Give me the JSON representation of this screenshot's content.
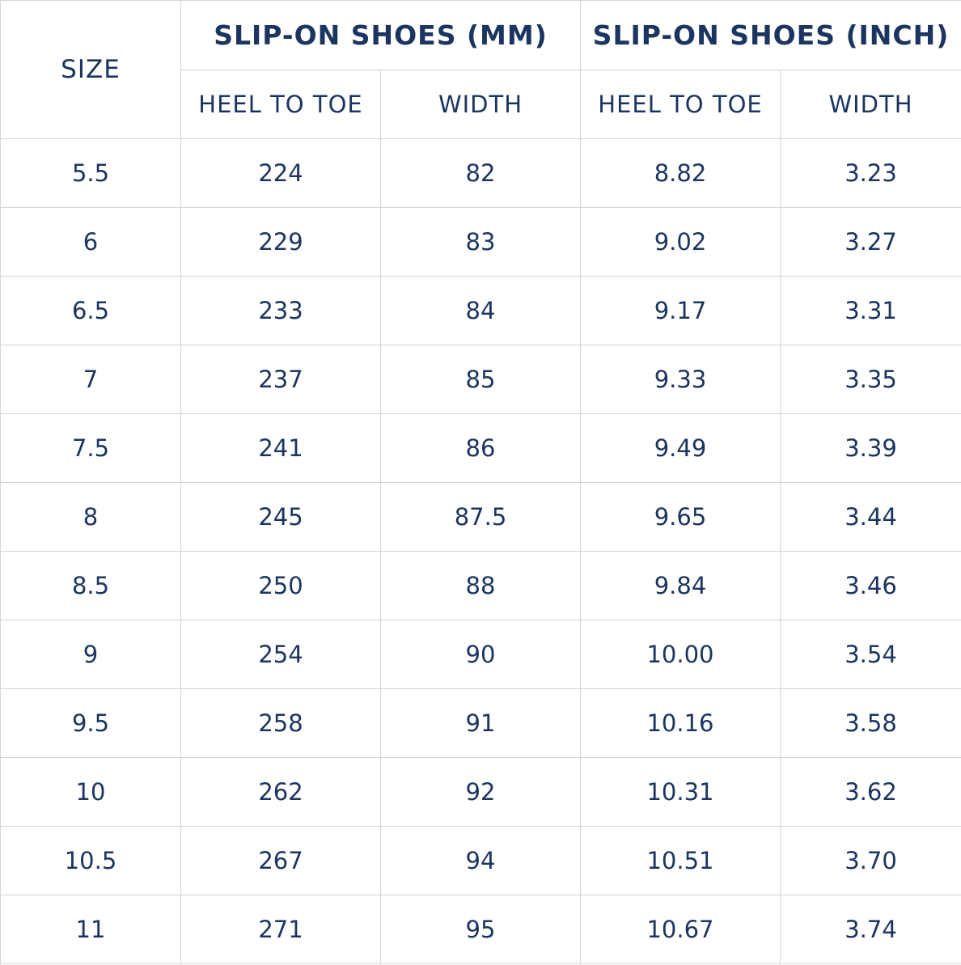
{
  "table": {
    "header": {
      "size": "SIZE",
      "group_mm": "SLIP-ON SHOES (MM)",
      "group_inch": "SLIP-ON SHOES (INCH)",
      "columns": [
        "HEEL TO TOE",
        "WIDTH",
        "HEEL TO TOE",
        "WIDTH"
      ]
    },
    "rows": [
      [
        "5.5",
        "224",
        "82",
        "8.82",
        "3.23"
      ],
      [
        "6",
        "229",
        "83",
        "9.02",
        "3.27"
      ],
      [
        "6.5",
        "233",
        "84",
        "9.17",
        "3.31"
      ],
      [
        "7",
        "237",
        "85",
        "9.33",
        "3.35"
      ],
      [
        "7.5",
        "241",
        "86",
        "9.49",
        "3.39"
      ],
      [
        "8",
        "245",
        "87.5",
        "9.65",
        "3.44"
      ],
      [
        "8.5",
        "250",
        "88",
        "9.84",
        "3.46"
      ],
      [
        "9",
        "254",
        "90",
        "10.00",
        "3.54"
      ],
      [
        "9.5",
        "258",
        "91",
        "10.16",
        "3.58"
      ],
      [
        "10",
        "262",
        "92",
        "10.31",
        "3.62"
      ],
      [
        "10.5",
        "267",
        "94",
        "10.51",
        "3.70"
      ],
      [
        "11",
        "271",
        "95",
        "10.67",
        "3.74"
      ]
    ]
  }
}
